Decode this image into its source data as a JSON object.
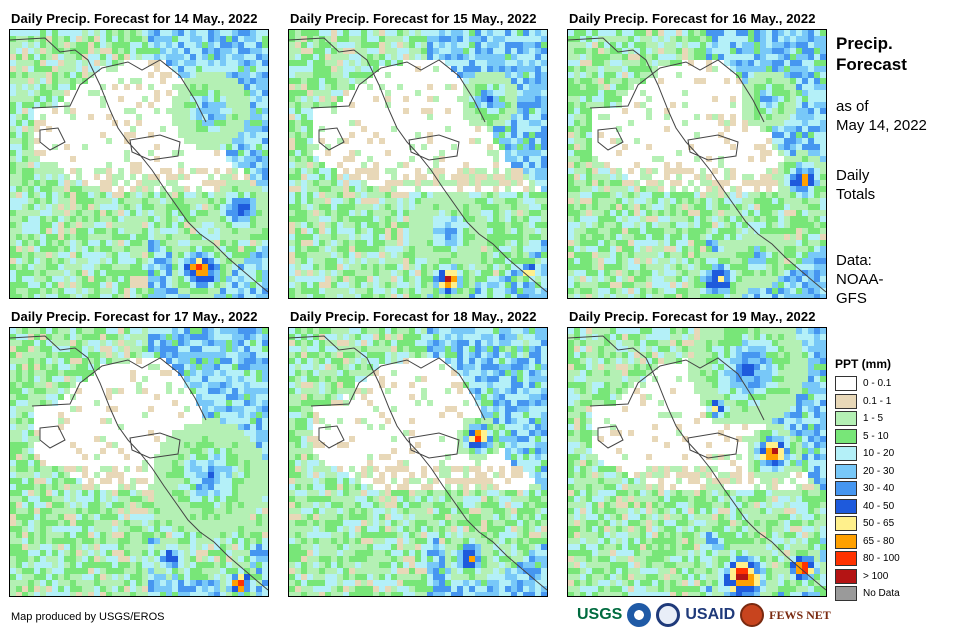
{
  "panels": [
    {
      "title": "Daily Precip. Forecast for 14 May., 2022"
    },
    {
      "title": "Daily Precip. Forecast for 15 May., 2022"
    },
    {
      "title": "Daily Precip. Forecast for 16 May., 2022"
    },
    {
      "title": "Daily Precip. Forecast for 17 May., 2022"
    },
    {
      "title": "Daily Precip. Forecast for 18 May., 2022"
    },
    {
      "title": "Daily Precip. Forecast for 19 May., 2022"
    }
  ],
  "side": {
    "title_line1": "Precip.",
    "title_line2": "Forecast",
    "asof_line1": "as of",
    "asof_line2": "May 14, 2022",
    "totals_line1": "Daily",
    "totals_line2": "Totals",
    "source_line1": "Data:",
    "source_line2": "NOAA-",
    "source_line3": "GFS"
  },
  "legend": {
    "title": "PPT (mm)",
    "items": [
      {
        "label": "0 - 0.1",
        "color": "#ffffff"
      },
      {
        "label": "0.1 - 1",
        "color": "#e8d8b8"
      },
      {
        "label": "1 - 5",
        "color": "#b4f0b4"
      },
      {
        "label": "5 - 10",
        "color": "#78e678"
      },
      {
        "label": "10 - 20",
        "color": "#b4f0f8"
      },
      {
        "label": "20 - 30",
        "color": "#78c8f8"
      },
      {
        "label": "30 - 40",
        "color": "#4696f0"
      },
      {
        "label": "40 - 50",
        "color": "#1e5adc"
      },
      {
        "label": "50 - 65",
        "color": "#fff08c"
      },
      {
        "label": "65 - 80",
        "color": "#ffa000"
      },
      {
        "label": "80 - 100",
        "color": "#ff3200"
      },
      {
        "label": "> 100",
        "color": "#b41414"
      },
      {
        "label": "No Data",
        "color": "#9a9a9a"
      }
    ]
  },
  "credit": "Map produced by USGS/EROS",
  "logos": {
    "usgs": "USGS",
    "usaid": "USAID",
    "fewsnet": "FEWS NET"
  }
}
